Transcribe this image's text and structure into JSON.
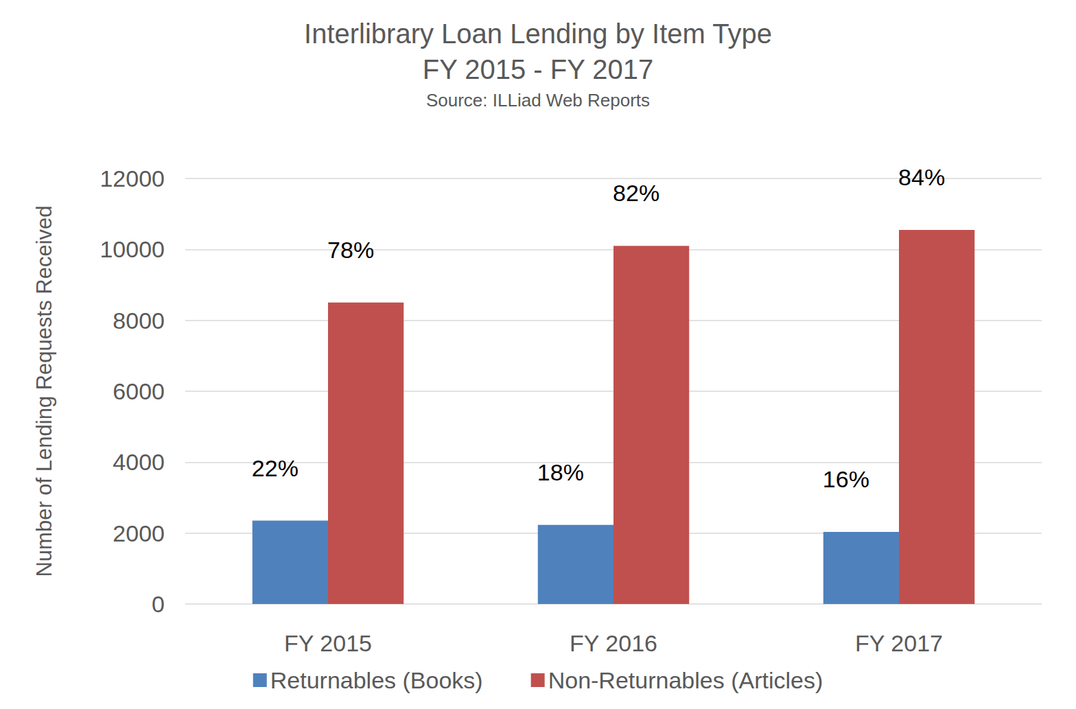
{
  "chart_data": {
    "type": "bar",
    "title": "Interlibrary Loan Lending by Item Type\nFY 2015 - FY 2017",
    "subtitle": "Source: ILLiad Web Reports",
    "y_label": "Number of Lending Requests Received",
    "categories": [
      "FY 2015",
      "FY 2016",
      "FY 2017"
    ],
    "series": [
      {
        "name": "Returnables (Books)",
        "color": "#4f81bd",
        "values": [
          2350,
          2230,
          2030
        ],
        "annotations": [
          "22%",
          "18%",
          "16%"
        ]
      },
      {
        "name": "Non-Returnables (Articles)",
        "color": "#c0504d",
        "values": [
          8500,
          10100,
          10550
        ],
        "annotations": [
          "78%",
          "82%",
          "84%"
        ]
      }
    ],
    "ylim": [
      0,
      12000
    ],
    "yticks": [
      0,
      2000,
      4000,
      6000,
      8000,
      10000,
      12000
    ],
    "grid": true,
    "legend": "bottom"
  }
}
